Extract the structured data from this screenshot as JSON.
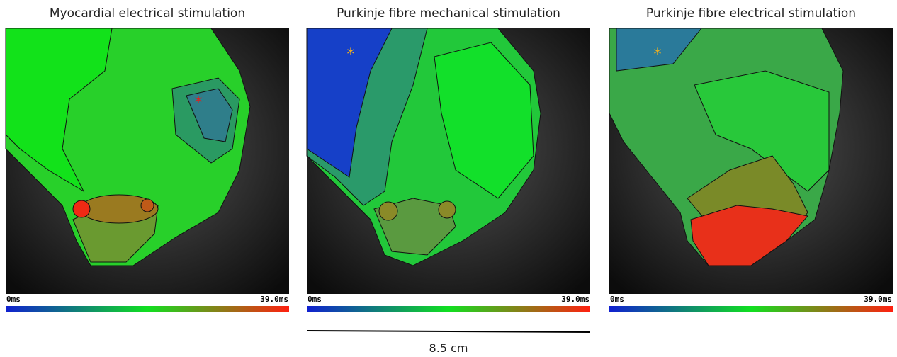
{
  "panels": [
    {
      "title": "Myocardial electrical stimulation",
      "colorbar": {
        "min_label": "0ms",
        "max_label": "39.0ms"
      }
    },
    {
      "title": "Purkinje fibre mechanical stimulation",
      "colorbar": {
        "min_label": "0ms",
        "max_label": "39.0ms"
      }
    },
    {
      "title": "Purkinje fibre electrical stimulation",
      "colorbar": {
        "min_label": "0ms",
        "max_label": "39.0ms"
      }
    }
  ],
  "scale_bar": {
    "label": "8.5 cm"
  }
}
